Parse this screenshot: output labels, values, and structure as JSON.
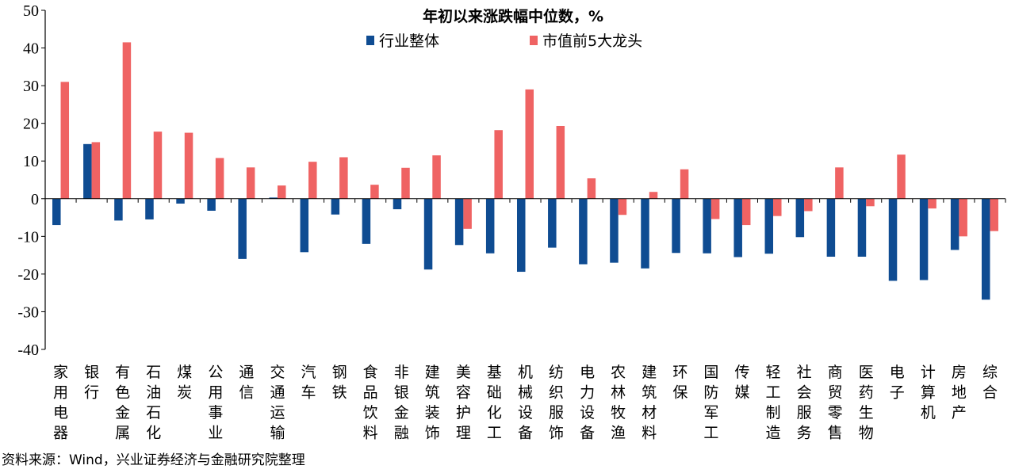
{
  "chart_data": {
    "type": "bar",
    "title": "年初以来涨跌幅中位数，%",
    "xlabel": "",
    "ylabel": "",
    "ylim": [
      -40,
      50
    ],
    "yticks": [
      50,
      40,
      30,
      20,
      10,
      0,
      -10,
      -20,
      -30,
      -40
    ],
    "legend_position": "top-center",
    "grid": false,
    "categories": [
      "家用电器",
      "银行",
      "有色金属",
      "石油石化",
      "煤炭",
      "公用事业",
      "通信",
      "交通运输",
      "汽车",
      "钢铁",
      "食品饮料",
      "非银金融",
      "建筑装饰",
      "美容护理",
      "基础化工",
      "机械设备",
      "纺织服饰",
      "电力设备",
      "农林牧渔",
      "建筑材料",
      "环保",
      "国防军工",
      "传媒",
      "轻工制造",
      "社会服务",
      "商贸零售",
      "医药生物",
      "电子",
      "计算机",
      "房地产",
      "综合"
    ],
    "series": [
      {
        "name": "行业整体",
        "color": "#0f4c92",
        "values": [
          -7.0,
          14.5,
          -5.8,
          -5.5,
          -1.3,
          -3.2,
          -16.0,
          0.3,
          -14.2,
          -4.2,
          -12.0,
          -2.8,
          -18.8,
          -12.3,
          -14.5,
          -19.4,
          -13.0,
          -17.4,
          -17.0,
          -18.5,
          -14.4,
          -14.5,
          -15.5,
          -14.6,
          -10.2,
          -15.4,
          -15.4,
          -21.8,
          -21.6,
          -13.6,
          -26.8
        ]
      },
      {
        "name": "市值前5大龙头",
        "color": "#ef6363",
        "values": [
          31.0,
          15.0,
          41.5,
          17.8,
          17.5,
          10.8,
          8.3,
          3.5,
          9.8,
          11.0,
          3.7,
          8.2,
          11.5,
          -8.0,
          18.2,
          29.0,
          19.3,
          5.4,
          -4.3,
          1.8,
          7.8,
          -5.4,
          -7.0,
          -4.6,
          -3.3,
          8.3,
          -2.0,
          11.7,
          -2.6,
          -10.0,
          -8.6
        ]
      }
    ]
  },
  "source_text": "资料来源：Wind，兴业证券经济与金融研究院整理"
}
